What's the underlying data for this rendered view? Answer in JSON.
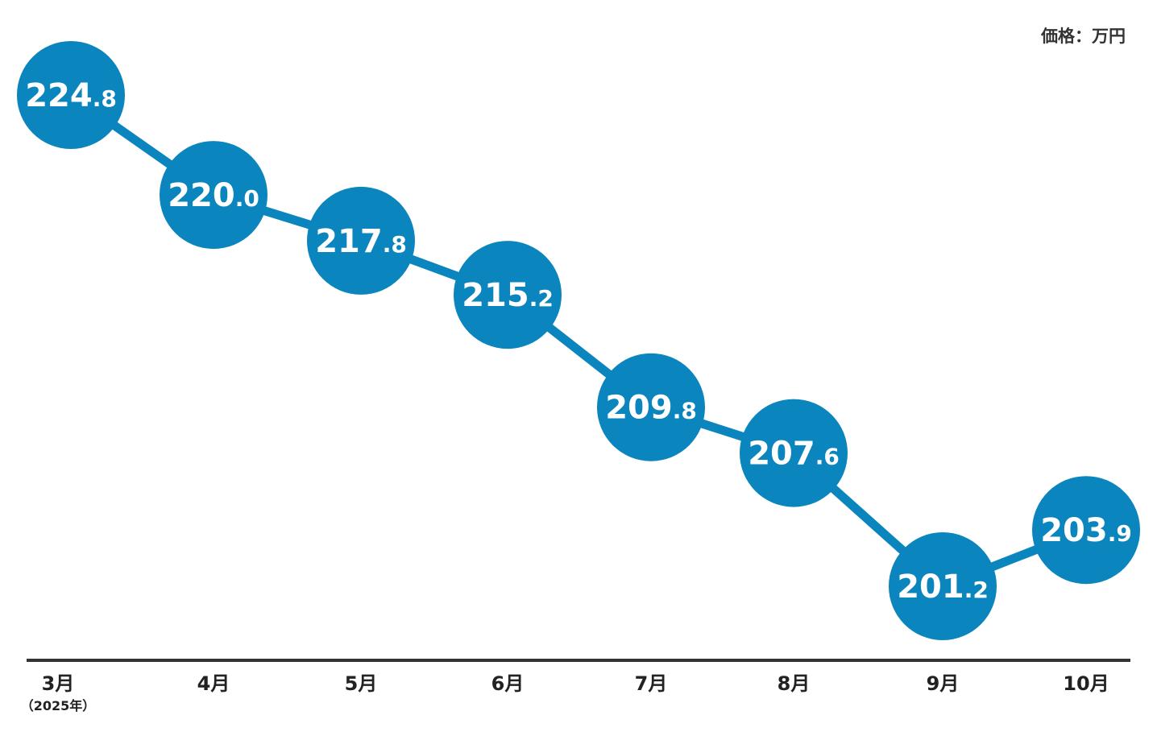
{
  "chart_data": {
    "type": "line",
    "unit_label": "価格：万円",
    "categories": [
      "3月",
      "4月",
      "5月",
      "6月",
      "7月",
      "8月",
      "9月",
      "10月"
    ],
    "category_sublabels": [
      "（2025年）",
      "",
      "",
      "",
      "",
      "",
      "",
      ""
    ],
    "values": [
      224.8,
      220.0,
      217.8,
      215.2,
      209.8,
      207.6,
      201.2,
      203.9
    ],
    "value_labels": [
      {
        "int": "224",
        "dec": ".8"
      },
      {
        "int": "220",
        "dec": ".0"
      },
      {
        "int": "217",
        "dec": ".8"
      },
      {
        "int": "215",
        "dec": ".2"
      },
      {
        "int": "209",
        "dec": ".8"
      },
      {
        "int": "207",
        "dec": ".6"
      },
      {
        "int": "201",
        "dec": ".2"
      },
      {
        "int": "203",
        "dec": ".9"
      }
    ],
    "grid": false,
    "legend": "none",
    "colors": {
      "series": "#0b85bd",
      "axis": "#333333"
    }
  }
}
